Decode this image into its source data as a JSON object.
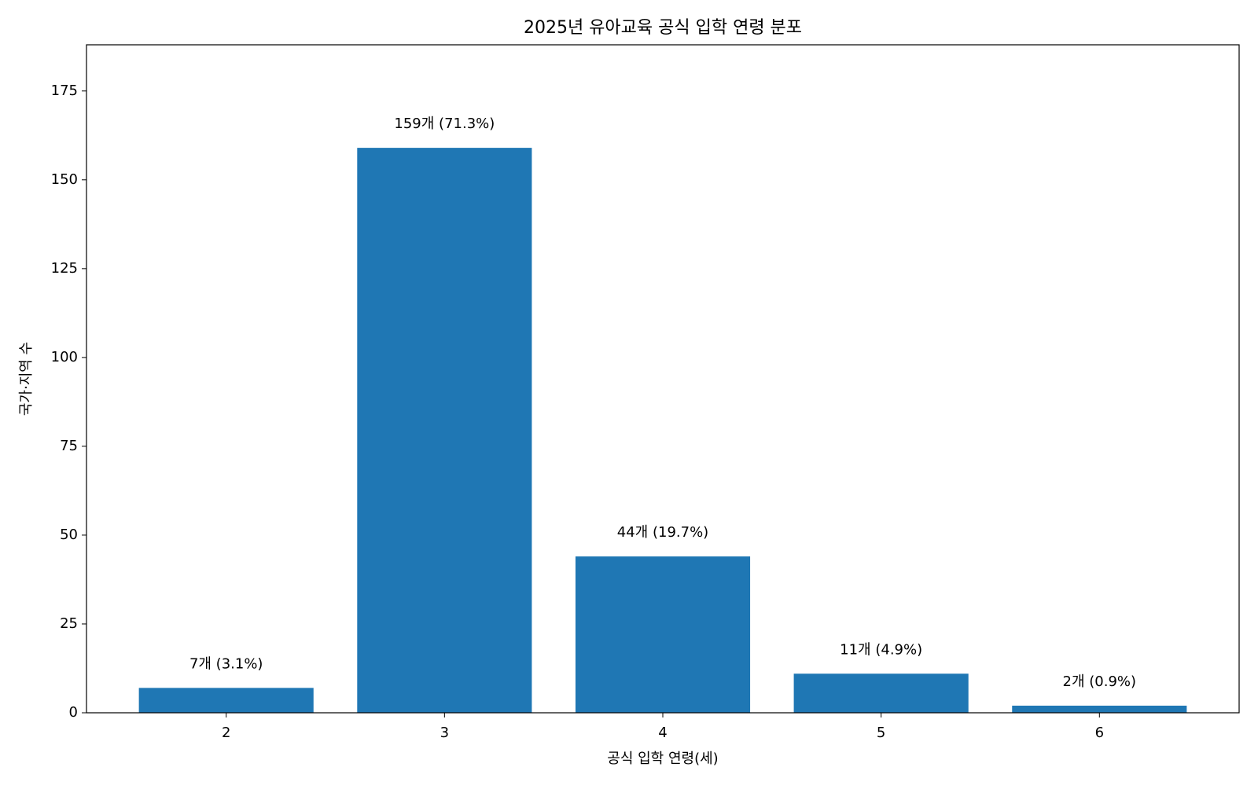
{
  "chart_data": {
    "type": "bar",
    "title": "2025년 유아교육 공식 입학 연령 분포",
    "x_label": "공식 입학 연령(세)",
    "y_label": "국가·지역 수",
    "x": [
      2,
      3,
      4,
      5,
      6
    ],
    "values": [
      7,
      159,
      44,
      11,
      2
    ],
    "value_labels": [
      "7개 (3.1%)",
      "159개 (71.3%)",
      "44개 (19.7%)",
      "11개 (4.9%)",
      "2개 (0.9%)"
    ],
    "color": "#1f77b4",
    "bar_width": 0.8,
    "xlim": [
      1.36,
      6.64
    ],
    "xticks": [
      2,
      3,
      4,
      5,
      6
    ],
    "ylim": [
      0,
      188
    ],
    "yticks": [
      0,
      25,
      50,
      75,
      100,
      125,
      150,
      175
    ],
    "grid": false
  }
}
